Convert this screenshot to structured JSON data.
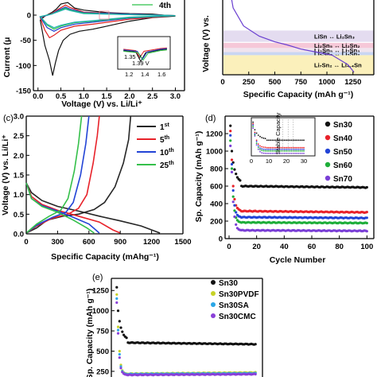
{
  "chart_data": [
    {
      "panel": "a",
      "type": "line",
      "xlabel": "Voltage (V) vs. Li/Li⁺",
      "ylabel": "Current (μ",
      "xlim": [
        -0.1,
        3.2
      ],
      "ylim": [
        -150,
        30
      ],
      "x_ticks": [
        "0.0",
        "0.5",
        "1.0",
        "1.5",
        "2.0",
        "2.5",
        "3.0"
      ],
      "y_ticks": [
        "0",
        "-50",
        "-100",
        "-150"
      ],
      "legend": [
        "4th"
      ],
      "series": [
        {
          "color": "#111111",
          "points": [
            [
              0.05,
              -10
            ],
            [
              0.15,
              -60
            ],
            [
              0.25,
              -90
            ],
            [
              0.32,
              -120
            ],
            [
              0.38,
              -95
            ],
            [
              0.45,
              -70
            ],
            [
              0.55,
              -50
            ],
            [
              0.7,
              -38
            ],
            [
              0.9,
              -32
            ],
            [
              1.2,
              -28
            ],
            [
              1.5,
              -22
            ],
            [
              2.0,
              -12
            ],
            [
              2.5,
              -5
            ],
            [
              3.0,
              -2
            ],
            [
              2.5,
              2
            ],
            [
              2.0,
              3
            ],
            [
              1.5,
              5
            ],
            [
              1.0,
              10
            ],
            [
              0.8,
              14
            ],
            [
              0.65,
              25
            ],
            [
              0.5,
              22
            ],
            [
              0.4,
              12
            ],
            [
              0.3,
              5
            ],
            [
              0.15,
              -2
            ],
            [
              0.05,
              -10
            ]
          ]
        },
        {
          "color": "#e02020",
          "points": [
            [
              0.05,
              -5
            ],
            [
              0.15,
              -30
            ],
            [
              0.25,
              -45
            ],
            [
              0.35,
              -40
            ],
            [
              0.5,
              -30
            ],
            [
              0.8,
              -22
            ],
            [
              1.2,
              -18
            ],
            [
              2.0,
              -8
            ],
            [
              3.0,
              -1
            ],
            [
              2.0,
              2
            ],
            [
              1.0,
              6
            ],
            [
              0.7,
              15
            ],
            [
              0.6,
              20
            ],
            [
              0.45,
              12
            ],
            [
              0.3,
              3
            ],
            [
              0.05,
              -5
            ]
          ]
        },
        {
          "color": "#1f3fcf",
          "points": [
            [
              0.05,
              -4
            ],
            [
              0.2,
              -25
            ],
            [
              0.35,
              -32
            ],
            [
              0.5,
              -25
            ],
            [
              0.8,
              -18
            ],
            [
              1.2,
              -14
            ],
            [
              2.0,
              -6
            ],
            [
              3.0,
              -1
            ],
            [
              2.0,
              2
            ],
            [
              1.0,
              5
            ],
            [
              0.7,
              12
            ],
            [
              0.6,
              16
            ],
            [
              0.45,
              10
            ],
            [
              0.3,
              2
            ],
            [
              0.05,
              -4
            ]
          ]
        },
        {
          "color": "#2ec24a",
          "points": [
            [
              0.05,
              -3
            ],
            [
              0.2,
              -20
            ],
            [
              0.35,
              -28
            ],
            [
              0.5,
              -22
            ],
            [
              0.8,
              -15
            ],
            [
              1.2,
              -12
            ],
            [
              2.0,
              -5
            ],
            [
              3.0,
              -1
            ],
            [
              2.0,
              1
            ],
            [
              1.0,
              4
            ],
            [
              0.7,
              10
            ],
            [
              0.6,
              14
            ],
            [
              0.45,
              8
            ],
            [
              0.3,
              2
            ],
            [
              0.05,
              -3
            ]
          ]
        },
        {
          "color": "#20b0b0",
          "points": [
            [
              0.05,
              -3
            ],
            [
              0.2,
              -18
            ],
            [
              0.35,
              -25
            ],
            [
              0.5,
              -20
            ],
            [
              0.8,
              -14
            ],
            [
              1.2,
              -11
            ],
            [
              2.0,
              -4
            ],
            [
              3.0,
              -1
            ],
            [
              2.0,
              1
            ],
            [
              1.0,
              3
            ],
            [
              0.7,
              9
            ],
            [
              0.6,
              12
            ],
            [
              0.45,
              7
            ],
            [
              0.3,
              2
            ],
            [
              0.05,
              -3
            ]
          ]
        }
      ],
      "inset": {
        "x_ticks": [
          "1.2",
          "1.4",
          "1.6"
        ],
        "annotations": [
          "1.35 V",
          "1.39 V"
        ]
      }
    },
    {
      "panel": "b",
      "type": "line",
      "xlabel": "Specific Capacity (mAh g⁻¹)",
      "ylabel": "Voltage (V) vs.",
      "x_ticks": [
        "0",
        "250",
        "500",
        "750",
        "1000",
        "1250"
      ],
      "xlim": [
        0,
        1450
      ],
      "ylim": [
        0,
        3.0
      ],
      "bands": [
        {
          "label": "LiSn ↔ Li₂Sn₃",
          "color": "#e4dcf0",
          "from": 0.64,
          "to": 0.86
        },
        {
          "label": "Li₂Sn₅ ↔ Li₂Sn₂",
          "color": "#f6c8d8",
          "from": 0.52,
          "to": 0.62
        },
        {
          "label": "Li₃Sn₅ ↔ Li₇Sn₃",
          "color": "#f0e4ee",
          "from": 0.44,
          "to": 0.52
        },
        {
          "label": "Li₅Sn₅ ↔ Li₇Sn₂",
          "color": "#c9d6f2",
          "from": 0.38,
          "to": 0.44
        },
        {
          "label": "Li₇Sn₂ ↔ Li₄.₄Sn",
          "color": "#fbf0bb",
          "from": 0.0,
          "to": 0.38
        }
      ],
      "curve": [
        [
          0,
          2.8
        ],
        [
          40,
          2.0
        ],
        [
          100,
          1.3
        ],
        [
          200,
          0.95
        ],
        [
          350,
          0.75
        ],
        [
          500,
          0.64
        ],
        [
          620,
          0.58
        ],
        [
          750,
          0.5
        ],
        [
          900,
          0.44
        ],
        [
          1050,
          0.38
        ],
        [
          1200,
          0.2
        ],
        [
          1260,
          0.05
        ]
      ]
    },
    {
      "panel": "c",
      "type": "line",
      "xlabel": "Specific Capacity (mAhg⁻¹)",
      "ylabel": "Voltage (V) vs. Li/Li⁺",
      "xlim": [
        0,
        1500
      ],
      "ylim": [
        0,
        3.0
      ],
      "x_ticks": [
        "0",
        "300",
        "600",
        "900",
        "1200",
        "1500"
      ],
      "y_ticks": [
        "0.0",
        "0.5",
        "1.0",
        "1.5",
        "2.0",
        "2.5",
        "3.0"
      ],
      "series": [
        {
          "name": "1st",
          "color": "#262626",
          "discharge": [
            [
              0,
              1.3
            ],
            [
              50,
              1.05
            ],
            [
              150,
              0.85
            ],
            [
              300,
              0.7
            ],
            [
              500,
              0.58
            ],
            [
              700,
              0.45
            ],
            [
              900,
              0.33
            ],
            [
              1100,
              0.2
            ],
            [
              1280,
              0.02
            ]
          ],
          "charge": [
            [
              0,
              0.02
            ],
            [
              100,
              0.15
            ],
            [
              200,
              0.35
            ],
            [
              350,
              0.45
            ],
            [
              500,
              0.5
            ],
            [
              650,
              0.62
            ],
            [
              750,
              0.8
            ],
            [
              850,
              1.2
            ],
            [
              930,
              1.8
            ],
            [
              980,
              2.4
            ],
            [
              1000,
              3.0
            ]
          ]
        },
        {
          "name": "5th",
          "color": "#e8222a",
          "discharge": [
            [
              0,
              1.3
            ],
            [
              50,
              0.95
            ],
            [
              150,
              0.75
            ],
            [
              300,
              0.6
            ],
            [
              500,
              0.45
            ],
            [
              700,
              0.3
            ],
            [
              830,
              0.1
            ],
            [
              900,
              0.02
            ]
          ],
          "charge": [
            [
              0,
              0.02
            ],
            [
              100,
              0.2
            ],
            [
              250,
              0.4
            ],
            [
              400,
              0.5
            ],
            [
              500,
              0.65
            ],
            [
              580,
              1.0
            ],
            [
              640,
              1.8
            ],
            [
              680,
              2.5
            ],
            [
              700,
              3.0
            ]
          ]
        },
        {
          "name": "10th",
          "color": "#2244d6",
          "discharge": [
            [
              0,
              1.3
            ],
            [
              50,
              0.9
            ],
            [
              150,
              0.72
            ],
            [
              300,
              0.58
            ],
            [
              450,
              0.42
            ],
            [
              600,
              0.25
            ],
            [
              700,
              0.02
            ]
          ],
          "charge": [
            [
              0,
              0.02
            ],
            [
              100,
              0.22
            ],
            [
              250,
              0.42
            ],
            [
              380,
              0.55
            ],
            [
              450,
              0.8
            ],
            [
              520,
              1.5
            ],
            [
              570,
              2.3
            ],
            [
              600,
              3.0
            ]
          ]
        },
        {
          "name": "25th",
          "color": "#35c04a",
          "discharge": [
            [
              0,
              1.3
            ],
            [
              50,
              0.9
            ],
            [
              150,
              0.7
            ],
            [
              300,
              0.55
            ],
            [
              450,
              0.35
            ],
            [
              580,
              0.15
            ],
            [
              650,
              0.02
            ]
          ],
          "charge": [
            [
              0,
              0.02
            ],
            [
              100,
              0.25
            ],
            [
              220,
              0.45
            ],
            [
              330,
              0.6
            ],
            [
              400,
              0.9
            ],
            [
              460,
              1.6
            ],
            [
              500,
              2.3
            ],
            [
              530,
              3.0
            ]
          ]
        }
      ]
    },
    {
      "panel": "d",
      "type": "scatter",
      "xlabel": "Cycle Number",
      "ylabel": "Sp. Capacity (mAh g⁻¹)",
      "xlim": [
        0,
        105
      ],
      "ylim": [
        0,
        1400
      ],
      "x_ticks": [
        "0",
        "20",
        "40",
        "60",
        "80",
        "100"
      ],
      "y_ticks": [
        "0",
        "200",
        "400",
        "600",
        "800",
        "1000",
        "1200"
      ],
      "series": [
        {
          "name": "Sn30",
          "color": "#111111",
          "first": [
            1290,
            1000,
            870,
            790,
            740,
            700,
            680,
            665
          ],
          "tail": 600,
          "end": 585
        },
        {
          "name": "Sn40",
          "color": "#e8222a",
          "first": [
            1230,
            900,
            600,
            450,
            380,
            350,
            335,
            325
          ],
          "tail": 315,
          "end": 300
        },
        {
          "name": "Sn50",
          "color": "#2244d6",
          "first": [
            1180,
            850,
            550,
            380,
            300,
            270,
            255,
            250
          ],
          "tail": 245,
          "end": 235
        },
        {
          "name": "Sn60",
          "color": "#1fae3a",
          "first": [
            1120,
            800,
            480,
            320,
            240,
            210,
            195,
            188
          ],
          "tail": 185,
          "end": 178
        },
        {
          "name": "Sn70",
          "color": "#7a3fd6",
          "first": [
            1060,
            760,
            420,
            250,
            160,
            120,
            105,
            98
          ],
          "tail": 95,
          "end": 88
        }
      ],
      "inset": {
        "x_ticks": [
          "0",
          "10",
          "20",
          "30"
        ],
        "label": "Stable Capacity"
      }
    },
    {
      "panel": "e",
      "type": "scatter",
      "ylabel": "Sp. Capacity (mAh g⁻¹)",
      "xlim": [
        0,
        105
      ],
      "ylim": [
        180,
        1400
      ],
      "y_ticks": [
        "250",
        "500",
        "750",
        "1000",
        "1250"
      ],
      "series": [
        {
          "name": "Sn30",
          "color": "#111111",
          "first": [
            1290,
            1000,
            870,
            790,
            740,
            700,
            680,
            665
          ],
          "tail": 605,
          "end": 585
        },
        {
          "name": "Sn30PVDF",
          "color": "#c7d227",
          "first": [
            1200,
            800,
            500,
            330,
            260,
            235,
            225,
            220
          ],
          "tail": 220,
          "end": 235
        },
        {
          "name": "Sn30SA",
          "color": "#2aa6e6",
          "first": [
            1150,
            760,
            460,
            310,
            250,
            228,
            220,
            215
          ],
          "tail": 215,
          "end": 225
        },
        {
          "name": "Sn30CMC",
          "color": "#8a40d8",
          "first": [
            1100,
            720,
            420,
            290,
            240,
            220,
            212,
            208
          ],
          "tail": 206,
          "end": 215
        }
      ]
    }
  ],
  "labels": {
    "c": "(c)",
    "d": "(d)",
    "e": "(e)"
  }
}
